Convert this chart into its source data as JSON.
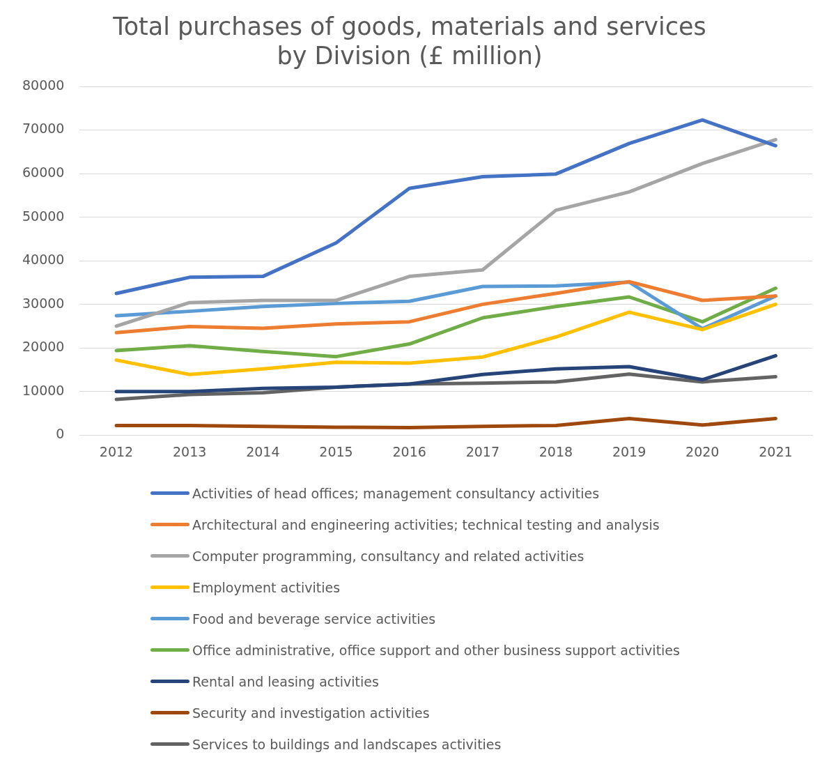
{
  "chart_data": {
    "type": "line",
    "title": "Total purchases of goods, materials and services by Division (£ million)",
    "categories": [
      "2012",
      "2013",
      "2014",
      "2015",
      "2016",
      "2017",
      "2018",
      "2019",
      "2020",
      "2021"
    ],
    "series": [
      {
        "name": "Activities of head offices; management consultancy activities",
        "color": "#4472c4",
        "values": [
          32500,
          36200,
          36400,
          44100,
          56600,
          59300,
          59900,
          66900,
          72300,
          66400
        ]
      },
      {
        "name": "Architectural and engineering activities; technical testing and analysis",
        "color": "#ed7d31",
        "values": [
          23500,
          24900,
          24500,
          25500,
          26000,
          30000,
          32500,
          35200,
          30900,
          31900
        ]
      },
      {
        "name": "Computer programming, consultancy and related activities",
        "color": "#a5a5a5",
        "values": [
          25000,
          30400,
          30900,
          30900,
          36400,
          37900,
          51600,
          55800,
          62300,
          67800
        ]
      },
      {
        "name": "Employment activities",
        "color": "#ffc000",
        "values": [
          17200,
          13900,
          15200,
          16700,
          16500,
          17900,
          22500,
          28200,
          24200,
          30000
        ]
      },
      {
        "name": "Food and beverage service activities",
        "color": "#5b9bd5",
        "values": [
          27400,
          28400,
          29500,
          30200,
          30700,
          34100,
          34200,
          35100,
          24400,
          31900
        ]
      },
      {
        "name": "Office administrative, office support and other business support activities",
        "color": "#70ad47",
        "values": [
          19400,
          20500,
          19200,
          18000,
          20900,
          26900,
          29500,
          31700,
          26000,
          33700
        ]
      },
      {
        "name": "Rental and leasing activities",
        "color": "#264478",
        "values": [
          10000,
          10000,
          10700,
          11000,
          11700,
          13900,
          15200,
          15700,
          12700,
          18200
        ]
      },
      {
        "name": "Security and investigation activities",
        "color": "#9e480e",
        "values": [
          2200,
          2200,
          2000,
          1800,
          1700,
          2000,
          2200,
          3800,
          2300,
          3800
        ]
      },
      {
        "name": "Services to buildings and landscapes activities",
        "color": "#636363",
        "values": [
          8200,
          9300,
          9700,
          11000,
          11700,
          11900,
          12200,
          14000,
          12200,
          13400
        ]
      }
    ],
    "ylim": [
      0,
      80000
    ],
    "yticks": [
      0,
      10000,
      20000,
      30000,
      40000,
      50000,
      60000,
      70000,
      80000
    ],
    "grid": "y",
    "legend": "bottom",
    "marker": "none",
    "line_style": "solid"
  }
}
